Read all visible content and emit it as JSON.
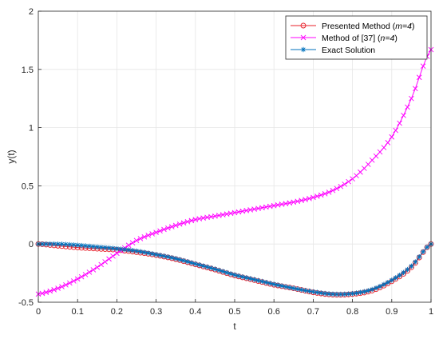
{
  "chart_data": {
    "type": "line",
    "title": "",
    "xlabel": "t",
    "ylabel": "y(t)",
    "xlim": [
      0,
      1
    ],
    "ylim": [
      -0.5,
      2
    ],
    "grid": true,
    "legend_position": "top-right",
    "x_ticks": [
      0,
      0.1,
      0.2,
      0.3,
      0.4,
      0.5,
      0.6,
      0.7,
      0.8,
      0.9,
      1
    ],
    "x_tick_labels": [
      "0",
      "0.1",
      "0.2",
      "0.3",
      "0.4",
      "0.5",
      "0.6",
      "0.7",
      "0.8",
      "0.9",
      "1"
    ],
    "y_ticks": [
      -0.5,
      0,
      0.5,
      1,
      1.5,
      2
    ],
    "y_tick_labels": [
      "-0.5",
      "0",
      "0.5",
      "1",
      "1.5",
      "2"
    ],
    "x": [
      0,
      0.05,
      0.1,
      0.15,
      0.2,
      0.25,
      0.3,
      0.35,
      0.4,
      0.45,
      0.5,
      0.55,
      0.6,
      0.65,
      0.7,
      0.75,
      0.8,
      0.85,
      0.9,
      0.95,
      1
    ],
    "series": [
      {
        "name_main": "Presented Method (",
        "name_italic": "m=4",
        "name_end": ")",
        "color": "#e8202a",
        "marker": "circle",
        "values": [
          0,
          -0.015,
          -0.03,
          -0.04,
          -0.05,
          -0.07,
          -0.095,
          -0.13,
          -0.175,
          -0.22,
          -0.27,
          -0.31,
          -0.35,
          -0.38,
          -0.415,
          -0.435,
          -0.43,
          -0.4,
          -0.32,
          -0.2,
          0
        ]
      },
      {
        "name_main": "Method of [37] (",
        "name_italic": "n=4",
        "name_end": ")",
        "color": "#ff00ff",
        "marker": "x",
        "values": [
          -0.43,
          -0.38,
          -0.3,
          -0.2,
          -0.08,
          0.03,
          0.1,
          0.16,
          0.21,
          0.24,
          0.27,
          0.3,
          0.33,
          0.36,
          0.4,
          0.46,
          0.56,
          0.72,
          0.92,
          1.25,
          1.67
        ]
      },
      {
        "name_main": "Exact Solution",
        "name_italic": "",
        "name_end": "",
        "color": "#0072bd",
        "marker": "asterisk",
        "values": [
          0,
          0,
          -0.01,
          -0.025,
          -0.04,
          -0.06,
          -0.09,
          -0.125,
          -0.17,
          -0.215,
          -0.265,
          -0.305,
          -0.345,
          -0.38,
          -0.41,
          -0.43,
          -0.425,
          -0.39,
          -0.31,
          -0.19,
          0
        ]
      }
    ]
  }
}
